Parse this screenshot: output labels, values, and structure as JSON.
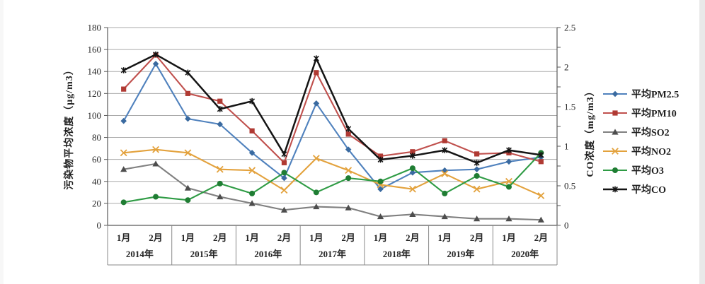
{
  "chart_data": {
    "type": "line",
    "title": "",
    "ylabel_left": "污染物平均浓度（μg/m3）",
    "ylabel_right": "CO浓度（mg/m3）",
    "y_left_axis": {
      "min": 0,
      "max": 180,
      "step": 20,
      "ticks": [
        "0",
        "20",
        "40",
        "60",
        "80",
        "100",
        "120",
        "140",
        "160",
        "180"
      ]
    },
    "y_right_axis": {
      "min": 0,
      "max": 2.5,
      "step": 0.5,
      "ticks": [
        "0",
        "0.5",
        "1",
        "1.5",
        "2",
        "2.5"
      ]
    },
    "grid": true,
    "legend_position": "right",
    "x_groups": [
      {
        "year": "2014年",
        "months": [
          "1月",
          "2月"
        ]
      },
      {
        "year": "2015年",
        "months": [
          "1月",
          "2月"
        ]
      },
      {
        "year": "2016年",
        "months": [
          "1月",
          "2月"
        ]
      },
      {
        "year": "2017年",
        "months": [
          "1月",
          "2月"
        ]
      },
      {
        "year": "2018年",
        "months": [
          "1月",
          "2月"
        ]
      },
      {
        "year": "2019年",
        "months": [
          "1月",
          "2月"
        ]
      },
      {
        "year": "2020年",
        "months": [
          "1月",
          "2月"
        ]
      }
    ],
    "series": [
      {
        "name": "平均PM2.5",
        "axis": "left",
        "color": "#4F81BD",
        "marker": "diamond",
        "marker_color": "#3a6aa0",
        "values": [
          95,
          147,
          97,
          92,
          66,
          43,
          111,
          69,
          33,
          48,
          50,
          51,
          58,
          62
        ]
      },
      {
        "name": "平均PM10",
        "axis": "left",
        "color": "#C0504D",
        "marker": "square",
        "marker_color": "#b03a33",
        "values": [
          124,
          155,
          120,
          113,
          86,
          57,
          139,
          83,
          63,
          67,
          77,
          65,
          66,
          58
        ]
      },
      {
        "name": "平均SO2",
        "axis": "left",
        "color": "#808080",
        "marker": "triangle",
        "marker_color": "#4d4d4d",
        "values": [
          51,
          56,
          34,
          26,
          20,
          14,
          17,
          16,
          8,
          10,
          8,
          6,
          6,
          5
        ]
      },
      {
        "name": "平均NO2",
        "axis": "left",
        "color": "#E3A23D",
        "marker": "x",
        "marker_color": "#E3A23D",
        "values": [
          66,
          69,
          66,
          51,
          50,
          32,
          61,
          50,
          37,
          33,
          47,
          33,
          40,
          27
        ]
      },
      {
        "name": "平均O3",
        "axis": "left",
        "color": "#2E9B44",
        "marker": "circle",
        "marker_color": "#1f7d33",
        "values": [
          21,
          26,
          23,
          38,
          29,
          48,
          30,
          43,
          40,
          52,
          29,
          45,
          35,
          66
        ]
      },
      {
        "name": "平均CO",
        "axis": "right",
        "color": "#141414",
        "marker": "asterisk",
        "marker_color": "#141414",
        "values": [
          1.96,
          2.16,
          1.93,
          1.47,
          1.57,
          0.9,
          2.11,
          1.22,
          0.83,
          0.88,
          0.95,
          0.79,
          0.95,
          0.89
        ]
      }
    ]
  }
}
